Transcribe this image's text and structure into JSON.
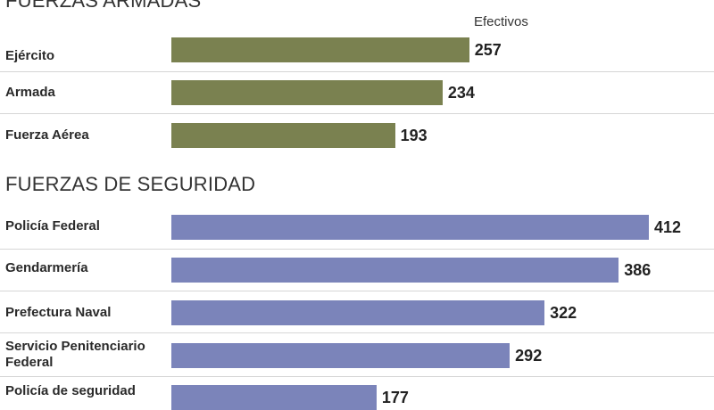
{
  "chart_data": [
    {
      "type": "bar",
      "orientation": "horizontal",
      "title": "FUERZAS ARMADAS",
      "value_header": "Efectivos",
      "color": "#7a8150",
      "categories": [
        "Ejército",
        "Armada",
        "Fuerza Aérea"
      ],
      "values": [
        257,
        234,
        193
      ]
    },
    {
      "type": "bar",
      "orientation": "horizontal",
      "title": "FUERZAS DE SEGURIDAD",
      "color": "#7b84ba",
      "categories": [
        "Policía Federal",
        "Gendarmería",
        "Prefectura Naval",
        "Servicio Penitenciario Federal",
        "Policía de seguridad"
      ],
      "values": [
        412,
        386,
        322,
        292,
        177
      ]
    }
  ]
}
